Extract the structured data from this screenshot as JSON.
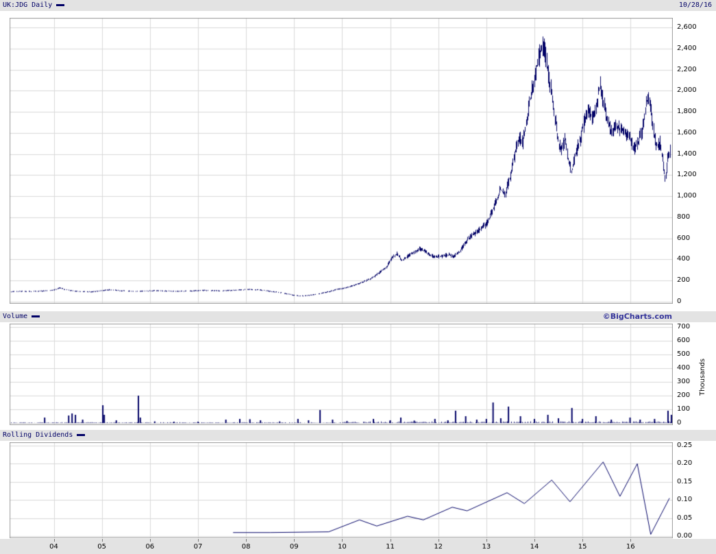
{
  "header": {
    "symbol": "UK:JDG Daily",
    "date": "10/28/16",
    "watermark": "©BigCharts.com"
  },
  "colors": {
    "series": "#000066",
    "grid": "#d9d9d9",
    "border": "#999999",
    "strip_bg": "#e3e3e3",
    "watermark": "#333399",
    "axis_text": "#000000"
  },
  "chart_data": [
    {
      "panel": "price",
      "type": "line",
      "title": "UK:JDG Daily",
      "x_range": [
        2003.08,
        2016.88
      ],
      "ylim": [
        0,
        2600
      ],
      "y_tick_step": 200,
      "y_tick_labels": [
        "0",
        "200",
        "400",
        "600",
        "800",
        "1,000",
        "1,200",
        "1,400",
        "1,600",
        "1,800",
        "2,000",
        "2,200",
        "2,400",
        "2,600"
      ],
      "x_tick_values": [
        2004,
        2005,
        2006,
        2007,
        2008,
        2009,
        2010,
        2011,
        2012,
        2013,
        2014,
        2015,
        2016
      ],
      "x_tick_labels": [
        "04",
        "05",
        "06",
        "07",
        "08",
        "09",
        "10",
        "11",
        "12",
        "13",
        "14",
        "15",
        "16"
      ],
      "series": [
        {
          "name": "UK:JDG",
          "points": [
            [
              2003.1,
              95
            ],
            [
              2003.3,
              100
            ],
            [
              2003.5,
              98
            ],
            [
              2003.7,
              102
            ],
            [
              2003.9,
              105
            ],
            [
              2004.05,
              118
            ],
            [
              2004.12,
              132
            ],
            [
              2004.2,
              120
            ],
            [
              2004.37,
              105
            ],
            [
              2004.6,
              96
            ],
            [
              2004.8,
              95
            ],
            [
              2004.94,
              104
            ],
            [
              2005.15,
              114
            ],
            [
              2005.4,
              105
            ],
            [
              2005.65,
              100
            ],
            [
              2005.9,
              102
            ],
            [
              2006.08,
              106
            ],
            [
              2006.4,
              102
            ],
            [
              2006.65,
              100
            ],
            [
              2006.9,
              104
            ],
            [
              2007.08,
              108
            ],
            [
              2007.3,
              106
            ],
            [
              2007.5,
              105
            ],
            [
              2007.7,
              108
            ],
            [
              2007.86,
              112
            ],
            [
              2008.07,
              118
            ],
            [
              2008.29,
              112
            ],
            [
              2008.5,
              100
            ],
            [
              2008.71,
              88
            ],
            [
              2008.86,
              75
            ],
            [
              2009.0,
              62
            ],
            [
              2009.14,
              55
            ],
            [
              2009.28,
              60
            ],
            [
              2009.5,
              75
            ],
            [
              2009.71,
              95
            ],
            [
              2009.86,
              115
            ],
            [
              2010.0,
              125
            ],
            [
              2010.21,
              150
            ],
            [
              2010.42,
              185
            ],
            [
              2010.64,
              230
            ],
            [
              2010.78,
              280
            ],
            [
              2010.92,
              330
            ],
            [
              2011.04,
              420
            ],
            [
              2011.14,
              455
            ],
            [
              2011.24,
              390
            ],
            [
              2011.35,
              430
            ],
            [
              2011.49,
              470
            ],
            [
              2011.61,
              505
            ],
            [
              2011.71,
              480
            ],
            [
              2011.81,
              445
            ],
            [
              2011.92,
              425
            ],
            [
              2012.07,
              430
            ],
            [
              2012.21,
              445
            ],
            [
              2012.32,
              430
            ],
            [
              2012.44,
              470
            ],
            [
              2012.55,
              555
            ],
            [
              2012.66,
              615
            ],
            [
              2012.78,
              650
            ],
            [
              2012.89,
              700
            ],
            [
              2012.99,
              730
            ],
            [
              2013.09,
              830
            ],
            [
              2013.21,
              960
            ],
            [
              2013.29,
              1070
            ],
            [
              2013.38,
              1010
            ],
            [
              2013.49,
              1180
            ],
            [
              2013.59,
              1400
            ],
            [
              2013.68,
              1560
            ],
            [
              2013.75,
              1500
            ],
            [
              2013.85,
              1760
            ],
            [
              2013.95,
              2020
            ],
            [
              2014.03,
              2200
            ],
            [
              2014.12,
              2380
            ],
            [
              2014.19,
              2420
            ],
            [
              2014.25,
              2280
            ],
            [
              2014.3,
              2120
            ],
            [
              2014.38,
              1900
            ],
            [
              2014.43,
              1720
            ],
            [
              2014.49,
              1520
            ],
            [
              2014.56,
              1420
            ],
            [
              2014.63,
              1560
            ],
            [
              2014.7,
              1340
            ],
            [
              2014.77,
              1230
            ],
            [
              2014.86,
              1420
            ],
            [
              2014.94,
              1520
            ],
            [
              2015.03,
              1700
            ],
            [
              2015.11,
              1820
            ],
            [
              2015.2,
              1740
            ],
            [
              2015.29,
              1850
            ],
            [
              2015.36,
              2060
            ],
            [
              2015.41,
              1930
            ],
            [
              2015.51,
              1720
            ],
            [
              2015.6,
              1610
            ],
            [
              2015.7,
              1670
            ],
            [
              2015.8,
              1630
            ],
            [
              2015.88,
              1600
            ],
            [
              2015.98,
              1545
            ],
            [
              2016.07,
              1450
            ],
            [
              2016.15,
              1510
            ],
            [
              2016.24,
              1620
            ],
            [
              2016.32,
              1870
            ],
            [
              2016.38,
              1960
            ],
            [
              2016.44,
              1750
            ],
            [
              2016.49,
              1560
            ],
            [
              2016.55,
              1470
            ],
            [
              2016.61,
              1510
            ],
            [
              2016.67,
              1320
            ],
            [
              2016.72,
              1160
            ],
            [
              2016.77,
              1360
            ],
            [
              2016.82,
              1430
            ]
          ]
        }
      ]
    },
    {
      "panel": "volume",
      "type": "bar",
      "label": "Volume",
      "ylabel": "Thousands",
      "ylim": [
        0,
        700
      ],
      "y_tick_step": 100,
      "y_tick_labels": [
        "0",
        "100",
        "200",
        "300",
        "400",
        "500",
        "600",
        "700"
      ],
      "points": [
        [
          2003.81,
          40
        ],
        [
          2004.31,
          55
        ],
        [
          2004.38,
          70
        ],
        [
          2004.45,
          60
        ],
        [
          2004.6,
          25
        ],
        [
          2005.02,
          130
        ],
        [
          2005.05,
          60
        ],
        [
          2005.3,
          20
        ],
        [
          2005.76,
          200
        ],
        [
          2005.8,
          40
        ],
        [
          2006.1,
          12
        ],
        [
          2006.5,
          10
        ],
        [
          2007.0,
          10
        ],
        [
          2007.58,
          25
        ],
        [
          2007.87,
          30
        ],
        [
          2008.08,
          28
        ],
        [
          2008.3,
          20
        ],
        [
          2008.7,
          12
        ],
        [
          2009.08,
          30
        ],
        [
          2009.3,
          20
        ],
        [
          2009.54,
          95
        ],
        [
          2009.8,
          25
        ],
        [
          2010.1,
          15
        ],
        [
          2010.65,
          30
        ],
        [
          2011.0,
          20
        ],
        [
          2011.22,
          40
        ],
        [
          2011.5,
          18
        ],
        [
          2011.93,
          30
        ],
        [
          2012.2,
          20
        ],
        [
          2012.36,
          90
        ],
        [
          2012.57,
          50
        ],
        [
          2012.8,
          25
        ],
        [
          2013.0,
          30
        ],
        [
          2013.14,
          150
        ],
        [
          2013.3,
          35
        ],
        [
          2013.46,
          120
        ],
        [
          2013.71,
          50
        ],
        [
          2014.0,
          30
        ],
        [
          2014.28,
          60
        ],
        [
          2014.5,
          35
        ],
        [
          2014.78,
          110
        ],
        [
          2015.0,
          30
        ],
        [
          2015.28,
          50
        ],
        [
          2015.6,
          25
        ],
        [
          2015.99,
          40
        ],
        [
          2016.2,
          25
        ],
        [
          2016.5,
          30
        ],
        [
          2016.78,
          90
        ],
        [
          2016.85,
          60
        ]
      ]
    },
    {
      "panel": "rolling_dividends",
      "type": "line",
      "label": "Rolling Dividends",
      "ylim": [
        0,
        0.25
      ],
      "y_tick_step": 0.05,
      "y_tick_labels": [
        "0.00",
        "0.05",
        "0.10",
        "0.15",
        "0.20",
        "0.25"
      ],
      "points": [
        [
          2007.73,
          0.01
        ],
        [
          2008.5,
          0.01
        ],
        [
          2009.72,
          0.012
        ],
        [
          2010.36,
          0.045
        ],
        [
          2010.72,
          0.028
        ],
        [
          2011.36,
          0.055
        ],
        [
          2011.69,
          0.045
        ],
        [
          2012.29,
          0.08
        ],
        [
          2012.6,
          0.07
        ],
        [
          2013.43,
          0.12
        ],
        [
          2013.79,
          0.09
        ],
        [
          2014.36,
          0.155
        ],
        [
          2014.74,
          0.095
        ],
        [
          2015.43,
          0.205
        ],
        [
          2015.78,
          0.11
        ],
        [
          2016.14,
          0.2
        ],
        [
          2016.42,
          0.005
        ],
        [
          2016.81,
          0.105
        ]
      ]
    }
  ]
}
